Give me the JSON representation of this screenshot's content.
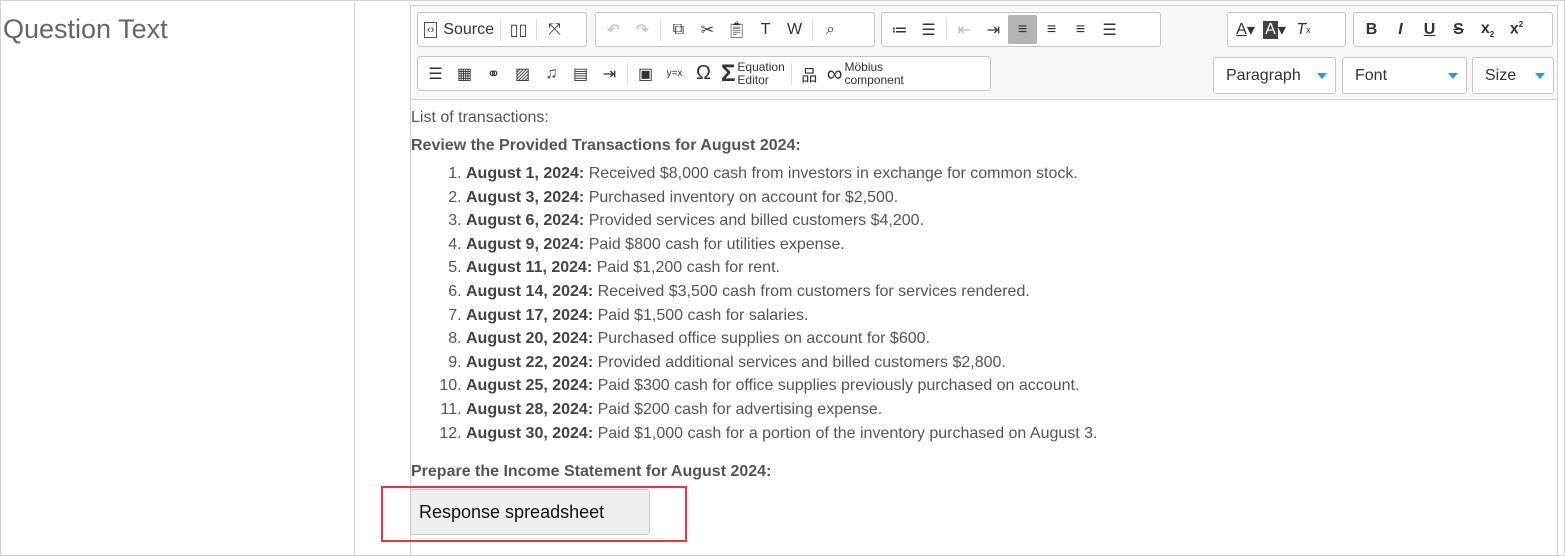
{
  "field_label": "Question Text",
  "toolbar": {
    "source": "Source",
    "equation_editor": "Equation Editor",
    "equation_line1": "Equation",
    "equation_line2": "Editor",
    "mobius_line1": "Möbius",
    "mobius_line2": "component",
    "paragraph": "Paragraph",
    "font": "Font",
    "size": "Size",
    "active_alignment": "align-left",
    "accent_color": "#2a9bd3"
  },
  "content": {
    "intro": "List of transactions:",
    "heading1": "Review the Provided Transactions for August 2024:",
    "transactions": [
      {
        "date": "August 1, 2024:",
        "text": " Received $8,000 cash from investors in exchange for common stock."
      },
      {
        "date": "August 3, 2024:",
        "text": " Purchased inventory on account for $2,500."
      },
      {
        "date": "August 6, 2024:",
        "text": " Provided services and billed customers $4,200."
      },
      {
        "date": "August 9, 2024:",
        "text": " Paid $800 cash for utilities expense."
      },
      {
        "date": "August 11, 2024:",
        "text": " Paid $1,200 cash for rent."
      },
      {
        "date": "August 14, 2024:",
        "text": " Received $3,500 cash from customers for services rendered."
      },
      {
        "date": "August 17, 2024:",
        "text": " Paid $1,500 cash for salaries."
      },
      {
        "date": "August 20, 2024:",
        "text": " Purchased office supplies on account for $600."
      },
      {
        "date": "August 22, 2024:",
        "text": " Provided additional services and billed customers $2,800."
      },
      {
        "date": "August 25, 2024:",
        "text": " Paid $300 cash for office supplies previously purchased on account."
      },
      {
        "date": "August 28, 2024:",
        "text": " Paid $200 cash for advertising expense."
      },
      {
        "date": "August 30, 2024:",
        "text": " Paid $1,000 cash for a portion of the inventory purchased on August 3."
      }
    ],
    "heading2": "Prepare the Income Statement for August 2024:",
    "response_button": "Response spreadsheet",
    "highlight_color": "#e0393e"
  }
}
